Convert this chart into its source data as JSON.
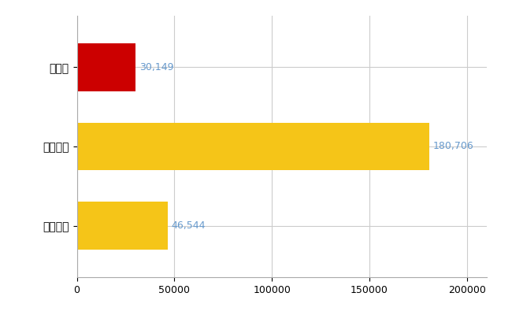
{
  "categories": [
    "宮崎県",
    "全国最大",
    "全国平均"
  ],
  "values": [
    30149,
    180706,
    46544
  ],
  "bar_colors": [
    "#cc0000",
    "#f5c518",
    "#f5c518"
  ],
  "label_color": "#6699cc",
  "value_labels": [
    "30,149",
    "180,706",
    "46,544"
  ],
  "xlim": [
    0,
    210000
  ],
  "xticks": [
    0,
    50000,
    100000,
    150000,
    200000
  ],
  "xtick_labels": [
    "0",
    "50000",
    "100000",
    "150000",
    "200000"
  ],
  "grid_color": "#cccccc",
  "background_color": "#ffffff",
  "bar_height": 0.6,
  "figwidth": 6.5,
  "figheight": 4.0,
  "dpi": 100
}
